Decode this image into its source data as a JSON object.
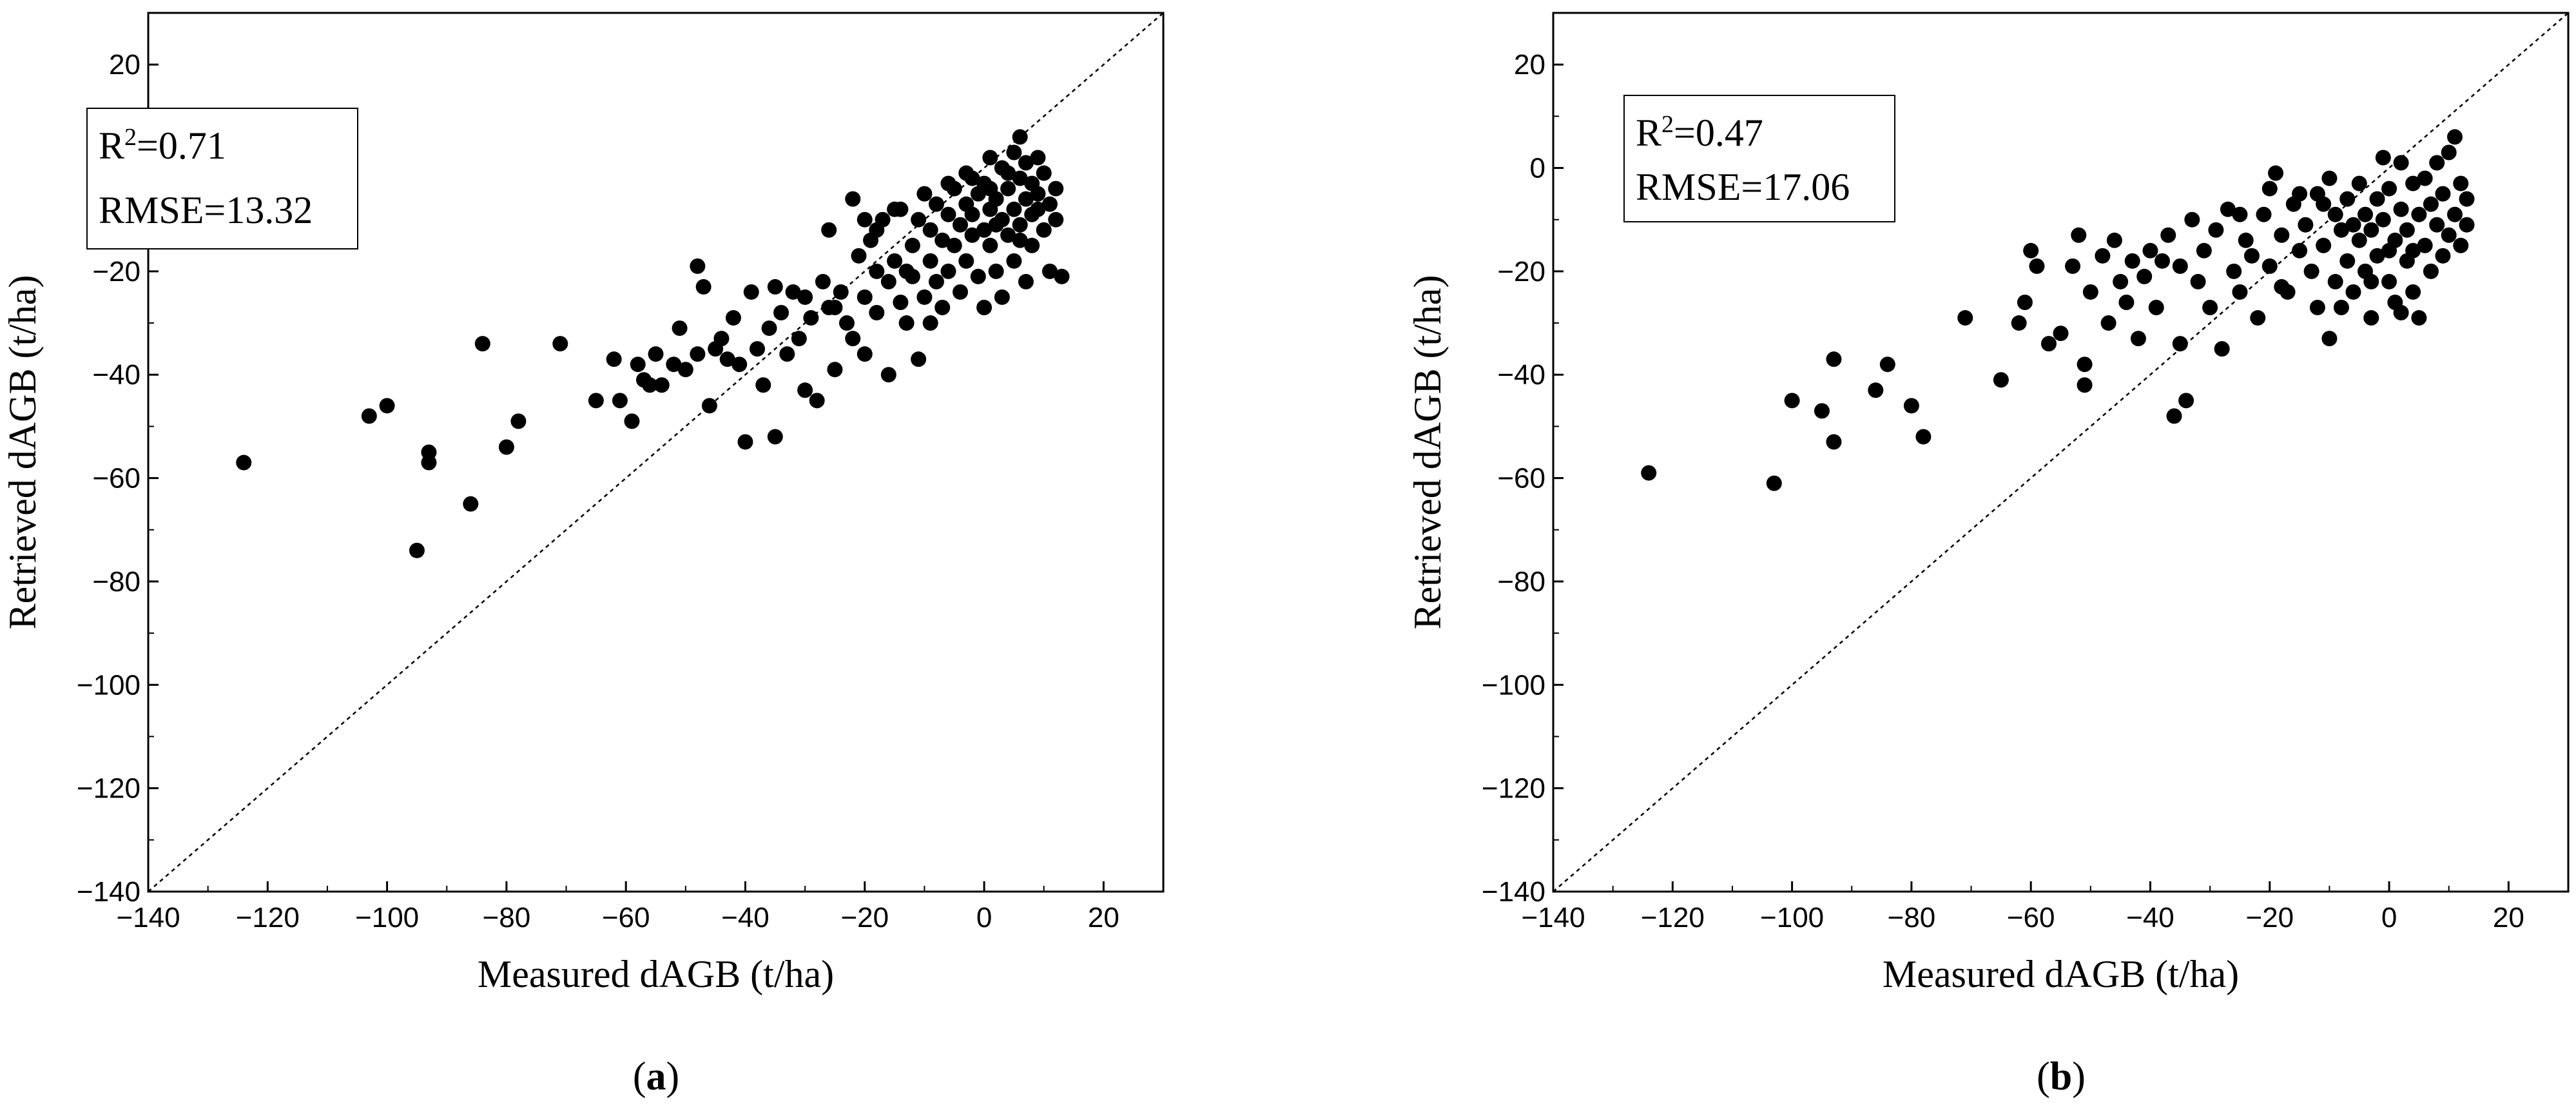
{
  "chart_data": [
    {
      "type": "scatter",
      "panel": "a",
      "caption": {
        "open": "(",
        "letter": "a",
        "close": ")"
      },
      "xlabel": "Measured dAGB (t/ha)",
      "ylabel": "Retrieved dAGB (t/ha)",
      "xlim": [
        -140,
        30
      ],
      "ylim": [
        -140,
        30
      ],
      "xticks": [
        -140,
        -120,
        -100,
        -80,
        -60,
        -40,
        -20,
        0,
        20
      ],
      "yticks": [
        20,
        0,
        -20,
        -40,
        -60,
        -80,
        -100,
        -120,
        -140
      ],
      "xtick_labels": [
        "−140",
        "−120",
        "−100",
        "−80",
        "−60",
        "−40",
        "−20",
        "0",
        "20"
      ],
      "ytick_labels": [
        "20",
        "0",
        "−20",
        "−40",
        "−60",
        "−80",
        "−100",
        "−120",
        "−140"
      ],
      "reference_line": "1:1",
      "stats": {
        "r2_label": "R",
        "r2_sup": "2",
        "r2_value": "=0.71",
        "rmse": "RMSE=13.32"
      },
      "points": [
        [
          -124,
          -57
        ],
        [
          -103,
          -48
        ],
        [
          -100,
          -46
        ],
        [
          -95,
          -74
        ],
        [
          -93,
          -55
        ],
        [
          -93,
          -57
        ],
        [
          -86,
          -65
        ],
        [
          -84,
          -34
        ],
        [
          -80,
          -54
        ],
        [
          -78,
          -49
        ],
        [
          -71,
          -34
        ],
        [
          -65,
          -45
        ],
        [
          -62,
          -37
        ],
        [
          -61,
          -45
        ],
        [
          -59,
          -49
        ],
        [
          -58,
          -38
        ],
        [
          -57,
          -41
        ],
        [
          -56,
          -42
        ],
        [
          -55,
          -36
        ],
        [
          -54,
          -42
        ],
        [
          -52,
          -38
        ],
        [
          -51,
          -31
        ],
        [
          -50,
          -39
        ],
        [
          -48,
          -36
        ],
        [
          -48,
          -19
        ],
        [
          -47,
          -23
        ],
        [
          -46,
          -46
        ],
        [
          -45,
          -35
        ],
        [
          -44,
          -33
        ],
        [
          -43,
          -37
        ],
        [
          -42,
          -29
        ],
        [
          -41,
          -38
        ],
        [
          -40,
          -53
        ],
        [
          -39,
          -24
        ],
        [
          -38,
          -35
        ],
        [
          -37,
          -42
        ],
        [
          -36,
          -31
        ],
        [
          -35,
          -52
        ],
        [
          -34,
          -28
        ],
        [
          -33,
          -36
        ],
        [
          -32,
          -24
        ],
        [
          -31,
          -33
        ],
        [
          -30,
          -43
        ],
        [
          -29,
          -29
        ],
        [
          -28,
          -45
        ],
        [
          -27,
          -22
        ],
        [
          -26,
          -27
        ],
        [
          -26,
          -12
        ],
        [
          -25,
          -39
        ],
        [
          -24,
          -24
        ],
        [
          -23,
          -30
        ],
        [
          -22,
          -6
        ],
        [
          -22,
          -33
        ],
        [
          -21,
          -17
        ],
        [
          -20,
          -25
        ],
        [
          -20,
          -36
        ],
        [
          -19,
          -14
        ],
        [
          -18,
          -20
        ],
        [
          -18,
          -28
        ],
        [
          -17,
          -10
        ],
        [
          -16,
          -22
        ],
        [
          -16,
          -40
        ],
        [
          -15,
          -18
        ],
        [
          -14,
          -26
        ],
        [
          -14,
          -8
        ],
        [
          -13,
          -30
        ],
        [
          -12,
          -15
        ],
        [
          -12,
          -21
        ],
        [
          -11,
          -37
        ],
        [
          -11,
          -10
        ],
        [
          -10,
          -25
        ],
        [
          -10,
          -5
        ],
        [
          -9,
          -18
        ],
        [
          -9,
          -12
        ],
        [
          -8,
          -22
        ],
        [
          -8,
          -7
        ],
        [
          -7,
          -14
        ],
        [
          -7,
          -27
        ],
        [
          -6,
          -9
        ],
        [
          -6,
          -20
        ],
        [
          -5,
          -4
        ],
        [
          -5,
          -15
        ],
        [
          -4,
          -11
        ],
        [
          -4,
          -24
        ],
        [
          -3,
          -7
        ],
        [
          -3,
          -18
        ],
        [
          -2,
          -2
        ],
        [
          -2,
          -13
        ],
        [
          -2,
          -9
        ],
        [
          -1,
          -5
        ],
        [
          -1,
          -21
        ],
        [
          0,
          -12
        ],
        [
          0,
          -3
        ],
        [
          0,
          -27
        ],
        [
          1,
          -8
        ],
        [
          1,
          2
        ],
        [
          1,
          -15
        ],
        [
          2,
          -6
        ],
        [
          2,
          -20
        ],
        [
          3,
          0
        ],
        [
          3,
          -10
        ],
        [
          3,
          -25
        ],
        [
          4,
          -4
        ],
        [
          4,
          -13
        ],
        [
          5,
          3
        ],
        [
          5,
          -8
        ],
        [
          5,
          -18
        ],
        [
          6,
          6
        ],
        [
          6,
          -2
        ],
        [
          6,
          -11
        ],
        [
          7,
          -6
        ],
        [
          7,
          -22
        ],
        [
          7,
          1
        ],
        [
          8,
          -9
        ],
        [
          8,
          -3
        ],
        [
          8,
          -15
        ],
        [
          9,
          2
        ],
        [
          9,
          -5
        ],
        [
          10,
          -12
        ],
        [
          10,
          -1
        ],
        [
          11,
          -7
        ],
        [
          11,
          -20
        ],
        [
          12,
          -4
        ],
        [
          12,
          -10
        ],
        [
          13,
          -21
        ],
        [
          -15,
          -8
        ],
        [
          -13,
          -20
        ],
        [
          -30,
          -25
        ],
        [
          -35,
          -23
        ],
        [
          -20,
          -10
        ],
        [
          -25,
          -27
        ],
        [
          -18,
          -12
        ],
        [
          -9,
          -30
        ],
        [
          -6,
          -3
        ],
        [
          2,
          -11
        ],
        [
          4,
          -1
        ],
        [
          6,
          -14
        ],
        [
          9,
          -8
        ],
        [
          -3,
          -1
        ],
        [
          1,
          -4
        ]
      ]
    },
    {
      "type": "scatter",
      "panel": "b",
      "caption": {
        "open": "(",
        "letter": "b",
        "close": ")"
      },
      "xlabel": "Measured dAGB (t/ha)",
      "ylabel": "Retrieved dAGB (t/ha)",
      "xlim": [
        -140,
        30
      ],
      "ylim": [
        -140,
        30
      ],
      "xticks": [
        -140,
        -120,
        -100,
        -80,
        -60,
        -40,
        -20,
        0,
        20
      ],
      "yticks": [
        20,
        0,
        -20,
        -40,
        -60,
        -80,
        -100,
        -120,
        -140
      ],
      "xtick_labels": [
        "−140",
        "−120",
        "−100",
        "−80",
        "−60",
        "−40",
        "−20",
        "0",
        "20"
      ],
      "ytick_labels": [
        "20",
        "0",
        "−20",
        "−40",
        "−60",
        "−80",
        "−100",
        "−120",
        "−140"
      ],
      "reference_line": "1:1",
      "stats": {
        "r2_label": "R",
        "r2_sup": "2",
        "r2_value": "=0.47",
        "rmse": "RMSE=17.06"
      },
      "points": [
        [
          -124,
          -59
        ],
        [
          -103,
          -61
        ],
        [
          -100,
          -45
        ],
        [
          -95,
          -47
        ],
        [
          -93,
          -37
        ],
        [
          -93,
          -53
        ],
        [
          -86,
          -43
        ],
        [
          -84,
          -38
        ],
        [
          -80,
          -46
        ],
        [
          -78,
          -52
        ],
        [
          -71,
          -29
        ],
        [
          -65,
          -41
        ],
        [
          -62,
          -30
        ],
        [
          -61,
          -26
        ],
        [
          -60,
          -16
        ],
        [
          -59,
          -19
        ],
        [
          -57,
          -34
        ],
        [
          -55,
          -32
        ],
        [
          -53,
          -19
        ],
        [
          -52,
          -13
        ],
        [
          -51,
          -38
        ],
        [
          -51,
          -42
        ],
        [
          -50,
          -24
        ],
        [
          -48,
          -17
        ],
        [
          -47,
          -30
        ],
        [
          -46,
          -14
        ],
        [
          -45,
          -22
        ],
        [
          -44,
          -26
        ],
        [
          -43,
          -18
        ],
        [
          -42,
          -33
        ],
        [
          -41,
          -21
        ],
        [
          -40,
          -16
        ],
        [
          -39,
          -27
        ],
        [
          -38,
          -18
        ],
        [
          -37,
          -13
        ],
        [
          -36,
          -48
        ],
        [
          -35,
          -19
        ],
        [
          -35,
          -34
        ],
        [
          -34,
          -45
        ],
        [
          -33,
          -10
        ],
        [
          -32,
          -22
        ],
        [
          -31,
          -16
        ],
        [
          -30,
          -27
        ],
        [
          -29,
          -12
        ],
        [
          -28,
          -35
        ],
        [
          -27,
          -8
        ],
        [
          -26,
          -20
        ],
        [
          -25,
          -24
        ],
        [
          -24,
          -14
        ],
        [
          -23,
          -17
        ],
        [
          -22,
          -29
        ],
        [
          -21,
          -9
        ],
        [
          -20,
          -4
        ],
        [
          -20,
          -19
        ],
        [
          -19,
          -1
        ],
        [
          -18,
          -13
        ],
        [
          -17,
          -24
        ],
        [
          -16,
          -7
        ],
        [
          -15,
          -16
        ],
        [
          -14,
          -11
        ],
        [
          -13,
          -20
        ],
        [
          -12,
          -5
        ],
        [
          -12,
          -27
        ],
        [
          -11,
          -15
        ],
        [
          -10,
          -2
        ],
        [
          -10,
          -33
        ],
        [
          -9,
          -9
        ],
        [
          -9,
          -22
        ],
        [
          -8,
          -12
        ],
        [
          -7,
          -6
        ],
        [
          -7,
          -18
        ],
        [
          -6,
          -24
        ],
        [
          -5,
          -3
        ],
        [
          -5,
          -14
        ],
        [
          -4,
          -9
        ],
        [
          -4,
          -20
        ],
        [
          -3,
          -12
        ],
        [
          -3,
          -29
        ],
        [
          -2,
          -6
        ],
        [
          -2,
          -17
        ],
        [
          -1,
          2
        ],
        [
          -1,
          -10
        ],
        [
          0,
          -22
        ],
        [
          0,
          -4
        ],
        [
          1,
          -14
        ],
        [
          1,
          -26
        ],
        [
          2,
          1
        ],
        [
          2,
          -8
        ],
        [
          3,
          -18
        ],
        [
          3,
          -12
        ],
        [
          4,
          -3
        ],
        [
          4,
          -24
        ],
        [
          5,
          -9
        ],
        [
          5,
          -29
        ],
        [
          6,
          -15
        ],
        [
          6,
          -2
        ],
        [
          7,
          -7
        ],
        [
          7,
          -20
        ],
        [
          8,
          -11
        ],
        [
          8,
          1
        ],
        [
          9,
          -5
        ],
        [
          9,
          -17
        ],
        [
          10,
          -13
        ],
        [
          10,
          3
        ],
        [
          11,
          6
        ],
        [
          11,
          -9
        ],
        [
          12,
          -3
        ],
        [
          12,
          -15
        ],
        [
          13,
          -6
        ],
        [
          13,
          -11
        ],
        [
          -18,
          -23
        ],
        [
          -15,
          -5
        ],
        [
          -25,
          -9
        ],
        [
          -8,
          -27
        ],
        [
          -6,
          -11
        ],
        [
          -3,
          -22
        ],
        [
          0,
          -16
        ],
        [
          2,
          -28
        ],
        [
          4,
          -16
        ],
        [
          -11,
          -7
        ]
      ]
    }
  ]
}
